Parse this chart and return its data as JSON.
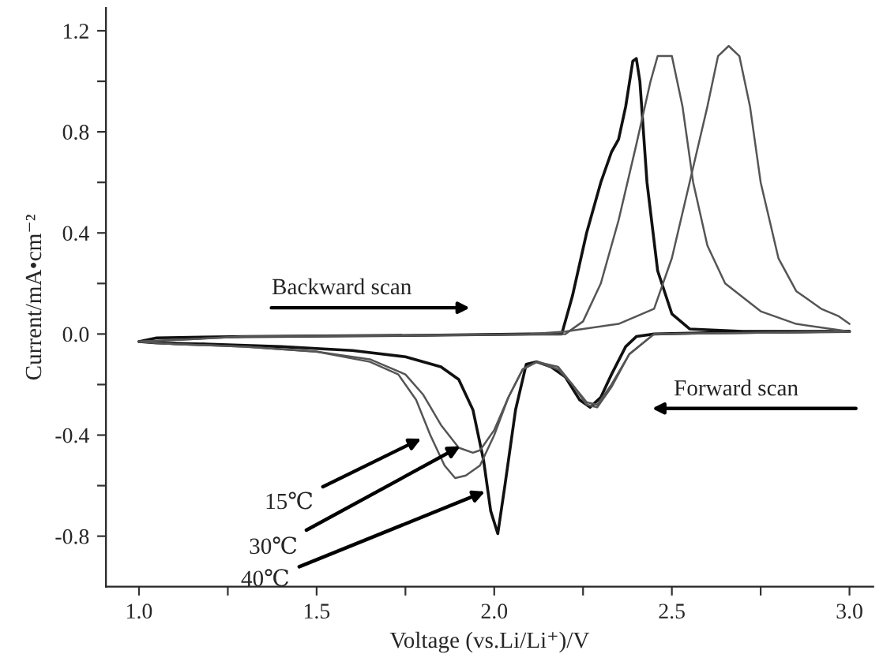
{
  "chart_data": {
    "type": "line",
    "xlabel": "Voltage (vs.Li/Li⁺)/V",
    "ylabel": "Current/mA•cm⁻²",
    "xlim": [
      0.907,
      3.067
    ],
    "ylim": [
      -1.0,
      1.29
    ],
    "xticks": [
      {
        "value": 1.0,
        "label": "1.0"
      },
      {
        "value": 1.25,
        "label": null
      },
      {
        "value": 1.5,
        "label": "1.5"
      },
      {
        "value": 1.75,
        "label": null
      },
      {
        "value": 2.0,
        "label": "2.0"
      },
      {
        "value": 2.25,
        "label": null
      },
      {
        "value": 2.5,
        "label": "2.5"
      },
      {
        "value": 2.75,
        "label": null
      },
      {
        "value": 3.0,
        "label": "3.0"
      }
    ],
    "yticks": [
      {
        "value": -0.8,
        "label": "-0.8"
      },
      {
        "value": -0.6,
        "label": null
      },
      {
        "value": -0.4,
        "label": "-0.4"
      },
      {
        "value": -0.2,
        "label": null
      },
      {
        "value": 0.0,
        "label": "0.0"
      },
      {
        "value": 0.2,
        "label": null
      },
      {
        "value": 0.4,
        "label": "0.4"
      },
      {
        "value": 0.6,
        "label": null
      },
      {
        "value": 0.8,
        "label": "0.8"
      },
      {
        "value": 1.0,
        "label": null
      },
      {
        "value": 1.2,
        "label": "1.2"
      }
    ],
    "marker": "none",
    "line_style": "solid",
    "series": [
      {
        "color": "#111111",
        "x": [
          3.0,
          2.6,
          2.45,
          2.4,
          2.37,
          2.33,
          2.3,
          2.27,
          2.24,
          2.2,
          2.16,
          2.12,
          2.09,
          2.06,
          2.03,
          2.01,
          1.99,
          1.97,
          1.94,
          1.9,
          1.85,
          1.75,
          1.6,
          1.4,
          1.2,
          1.05,
          1.0
        ],
        "values": [
          0.01,
          0.005,
          0.0,
          -0.01,
          -0.05,
          -0.16,
          -0.25,
          -0.29,
          -0.26,
          -0.17,
          -0.13,
          -0.11,
          -0.12,
          -0.3,
          -0.6,
          -0.79,
          -0.7,
          -0.5,
          -0.3,
          -0.18,
          -0.13,
          -0.09,
          -0.065,
          -0.05,
          -0.04,
          -0.035,
          -0.03
        ]
      },
      {
        "color": "#111111",
        "x": [
          1.0,
          1.05,
          1.3,
          1.8,
          2.1,
          2.19,
          2.22,
          2.26,
          2.3,
          2.33,
          2.35,
          2.37,
          2.39,
          2.4,
          2.41,
          2.43,
          2.46,
          2.5,
          2.55,
          2.7,
          3.0
        ],
        "values": [
          -0.03,
          -0.015,
          -0.01,
          -0.005,
          0.0,
          0.0,
          0.15,
          0.4,
          0.6,
          0.72,
          0.77,
          0.9,
          1.08,
          1.09,
          1.0,
          0.6,
          0.25,
          0.08,
          0.02,
          0.01,
          0.01
        ]
      },
      {
        "color": "#555555",
        "x": [
          3.0,
          2.45,
          2.38,
          2.33,
          2.29,
          2.26,
          2.22,
          2.18,
          2.12,
          2.08,
          2.04,
          2.0,
          1.96,
          1.94,
          1.9,
          1.85,
          1.8,
          1.75,
          1.65,
          1.5,
          1.3,
          1.1,
          1.0
        ],
        "values": [
          0.01,
          0.0,
          -0.08,
          -0.2,
          -0.28,
          -0.27,
          -0.2,
          -0.14,
          -0.11,
          -0.14,
          -0.25,
          -0.38,
          -0.46,
          -0.47,
          -0.45,
          -0.36,
          -0.24,
          -0.16,
          -0.1,
          -0.07,
          -0.05,
          -0.04,
          -0.03
        ]
      },
      {
        "color": "#555555",
        "x": [
          1.0,
          1.3,
          1.8,
          2.2,
          2.25,
          2.3,
          2.35,
          2.4,
          2.44,
          2.46,
          2.5,
          2.53,
          2.56,
          2.6,
          2.65,
          2.75,
          2.85,
          3.0
        ],
        "values": [
          -0.03,
          -0.01,
          -0.005,
          0.0,
          0.05,
          0.2,
          0.45,
          0.75,
          1.0,
          1.1,
          1.1,
          0.9,
          0.6,
          0.35,
          0.2,
          0.09,
          0.04,
          0.01
        ]
      },
      {
        "color": "#555555",
        "x": [
          3.0,
          2.45,
          2.38,
          2.33,
          2.29,
          2.26,
          2.22,
          2.18,
          2.12,
          2.08,
          2.04,
          2.0,
          1.96,
          1.92,
          1.89,
          1.86,
          1.82,
          1.78,
          1.73,
          1.65,
          1.5,
          1.3,
          1.1,
          1.0
        ],
        "values": [
          0.01,
          0.0,
          -0.08,
          -0.21,
          -0.29,
          -0.28,
          -0.2,
          -0.13,
          -0.11,
          -0.14,
          -0.25,
          -0.4,
          -0.52,
          -0.56,
          -0.57,
          -0.52,
          -0.4,
          -0.26,
          -0.16,
          -0.11,
          -0.07,
          -0.05,
          -0.04,
          -0.03
        ]
      },
      {
        "color": "#555555",
        "x": [
          1.0,
          1.3,
          1.8,
          2.1,
          2.2,
          2.35,
          2.45,
          2.5,
          2.55,
          2.58,
          2.6,
          2.63,
          2.66,
          2.69,
          2.72,
          2.75,
          2.8,
          2.85,
          2.92,
          2.97,
          3.0
        ],
        "values": [
          -0.03,
          -0.01,
          -0.005,
          0.0,
          0.01,
          0.04,
          0.1,
          0.3,
          0.6,
          0.78,
          0.9,
          1.1,
          1.14,
          1.1,
          0.9,
          0.6,
          0.3,
          0.17,
          0.1,
          0.07,
          0.04
        ]
      }
    ],
    "annotations": [
      "Backward scan",
      "Forward scan",
      {
        "text": "15℃",
        "x": 1.8,
        "y": -0.41
      },
      {
        "text": "30℃",
        "x": 1.91,
        "y": -0.44
      },
      {
        "text": "40℃",
        "x": 1.98,
        "y": -0.62
      }
    ]
  }
}
